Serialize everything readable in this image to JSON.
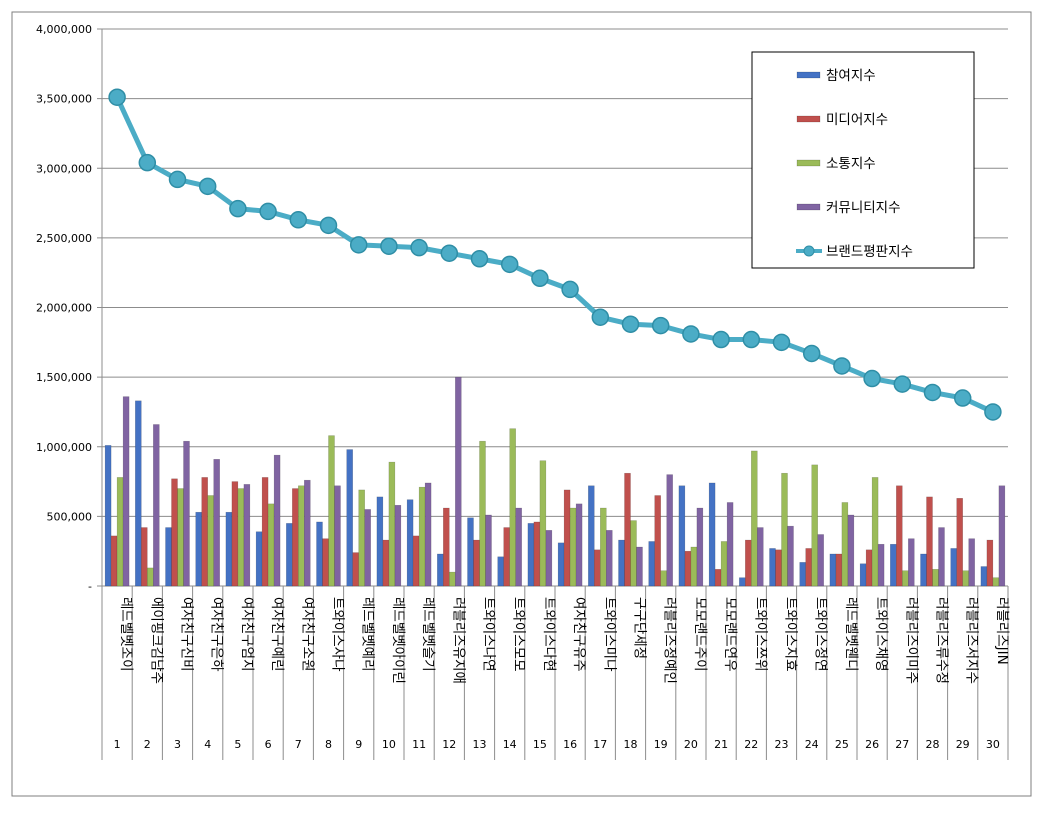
{
  "chart_data": {
    "type": "bar+line",
    "ylim": [
      0,
      4000000
    ],
    "y_ticks": [
      "-",
      "500,000",
      "1,000,000",
      "1,500,000",
      "2,000,000",
      "2,500,000",
      "3,000,000",
      "3,500,000",
      "4,000,000"
    ],
    "y_tick_values": [
      0,
      500000,
      1000000,
      1500000,
      2000000,
      2500000,
      3000000,
      3500000,
      4000000
    ],
    "grid": true,
    "legend_position": "top-right",
    "categories": [
      {
        "num": "1",
        "name": "레드벨벳조이"
      },
      {
        "num": "2",
        "name": "에이핑크김남주"
      },
      {
        "num": "3",
        "name": "여자친구신비"
      },
      {
        "num": "4",
        "name": "여자친구은하"
      },
      {
        "num": "5",
        "name": "여자친구엄지"
      },
      {
        "num": "6",
        "name": "여자친구예린"
      },
      {
        "num": "7",
        "name": "여자친구소원"
      },
      {
        "num": "8",
        "name": "트와이스사나"
      },
      {
        "num": "9",
        "name": "레드벨벳예리"
      },
      {
        "num": "10",
        "name": "레드벨벳아이린"
      },
      {
        "num": "11",
        "name": "레드벨벳슬기"
      },
      {
        "num": "12",
        "name": "러블리즈유지애"
      },
      {
        "num": "13",
        "name": "트와이스나연"
      },
      {
        "num": "14",
        "name": "트와이스모모"
      },
      {
        "num": "15",
        "name": "트와이스다현"
      },
      {
        "num": "16",
        "name": "여자친구유주"
      },
      {
        "num": "17",
        "name": "트와이스미나"
      },
      {
        "num": "18",
        "name": "구구단세정"
      },
      {
        "num": "19",
        "name": "러블리즈정예인"
      },
      {
        "num": "20",
        "name": "모모랜드주이"
      },
      {
        "num": "21",
        "name": "모모랜드연우"
      },
      {
        "num": "22",
        "name": "트와이스쯔위"
      },
      {
        "num": "23",
        "name": "트와이스지효"
      },
      {
        "num": "24",
        "name": "트와이스정연"
      },
      {
        "num": "25",
        "name": "레드벨벳웬디"
      },
      {
        "num": "26",
        "name": "트와이스채영"
      },
      {
        "num": "27",
        "name": "러블리즈이미주"
      },
      {
        "num": "28",
        "name": "러블리즈류수정"
      },
      {
        "num": "29",
        "name": "러블리즈서지수"
      },
      {
        "num": "30",
        "name": "러블리즈JIN"
      }
    ],
    "series": [
      {
        "name": "참여지수",
        "type": "bar",
        "color": "#4472C4",
        "values": [
          1010000,
          1330000,
          420000,
          530000,
          530000,
          390000,
          450000,
          460000,
          980000,
          640000,
          620000,
          230000,
          490000,
          210000,
          450000,
          310000,
          720000,
          330000,
          320000,
          720000,
          740000,
          60000,
          270000,
          170000,
          230000,
          160000,
          300000,
          230000,
          270000,
          140000
        ]
      },
      {
        "name": "미디어지수",
        "type": "bar",
        "color": "#C0504D",
        "values": [
          360000,
          420000,
          770000,
          780000,
          750000,
          780000,
          700000,
          340000,
          240000,
          330000,
          360000,
          560000,
          330000,
          420000,
          460000,
          690000,
          260000,
          810000,
          650000,
          250000,
          120000,
          330000,
          260000,
          270000,
          230000,
          260000,
          720000,
          640000,
          630000,
          330000
        ]
      },
      {
        "name": "소통지수",
        "type": "bar",
        "color": "#9BBB59",
        "values": [
          780000,
          130000,
          700000,
          650000,
          700000,
          590000,
          720000,
          1080000,
          690000,
          890000,
          710000,
          100000,
          1040000,
          1130000,
          900000,
          560000,
          560000,
          470000,
          110000,
          280000,
          320000,
          970000,
          810000,
          870000,
          600000,
          780000,
          110000,
          120000,
          110000,
          60000
        ]
      },
      {
        "name": "커뮤니티지수",
        "type": "bar",
        "color": "#8064A2",
        "values": [
          1360000,
          1160000,
          1040000,
          910000,
          730000,
          940000,
          760000,
          720000,
          550000,
          580000,
          740000,
          1500000,
          510000,
          560000,
          400000,
          590000,
          400000,
          280000,
          800000,
          560000,
          600000,
          420000,
          430000,
          370000,
          510000,
          300000,
          340000,
          420000,
          340000,
          720000
        ]
      },
      {
        "name": "브랜드평판지수",
        "type": "line",
        "color": "#4BACC6",
        "values": [
          3510000,
          3040000,
          2920000,
          2870000,
          2710000,
          2690000,
          2630000,
          2590000,
          2450000,
          2440000,
          2430000,
          2390000,
          2350000,
          2310000,
          2210000,
          2130000,
          1930000,
          1880000,
          1870000,
          1810000,
          1770000,
          1770000,
          1750000,
          1670000,
          1580000,
          1490000,
          1450000,
          1390000,
          1350000,
          1250000
        ]
      }
    ]
  }
}
